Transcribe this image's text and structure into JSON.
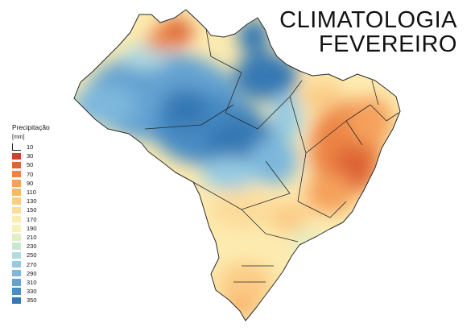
{
  "title": {
    "line1": "CLIMATOLOGIA",
    "line2": "FEVEREIRO"
  },
  "legend": {
    "title": "Precipitação",
    "unit": "[mm]",
    "items": [
      {
        "label": "10",
        "color": "#ffffff"
      },
      {
        "label": "30",
        "color": "#c8442e"
      },
      {
        "label": "50",
        "color": "#dd6336"
      },
      {
        "label": "70",
        "color": "#ec8445"
      },
      {
        "label": "90",
        "color": "#f5a05c"
      },
      {
        "label": "110",
        "color": "#f8b770"
      },
      {
        "label": "130",
        "color": "#fbcc86"
      },
      {
        "label": "150",
        "color": "#fcdc9b"
      },
      {
        "label": "170",
        "color": "#fdebb0"
      },
      {
        "label": "190",
        "color": "#f6f2b8"
      },
      {
        "label": "210",
        "color": "#e2efc4"
      },
      {
        "label": "230",
        "color": "#cbe6d2"
      },
      {
        "label": "250",
        "color": "#b2dbe0"
      },
      {
        "label": "270",
        "color": "#96cae2"
      },
      {
        "label": "290",
        "color": "#7db7dc"
      },
      {
        "label": "310",
        "color": "#63a2d2"
      },
      {
        "label": "330",
        "color": "#4a8cc4"
      },
      {
        "label": "350",
        "color": "#3478b4"
      }
    ]
  },
  "colors": {
    "border": "#2a2a2a",
    "background": "#ffffff"
  }
}
